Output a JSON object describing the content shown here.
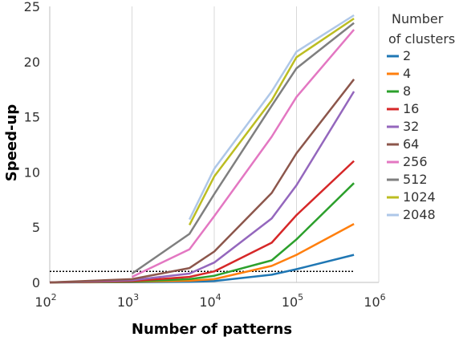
{
  "chart_data": {
    "type": "line",
    "xlabel": "Number of patterns",
    "ylabel": "Speed-up",
    "xscale": "log",
    "xlim": [
      100,
      1000000
    ],
    "ylim": [
      0,
      25
    ],
    "x_ticks": [
      {
        "value": 100,
        "base": "10",
        "exp": "2"
      },
      {
        "value": 1000,
        "base": "10",
        "exp": "3"
      },
      {
        "value": 10000,
        "base": "10",
        "exp": "4"
      },
      {
        "value": 100000,
        "base": "10",
        "exp": "5"
      },
      {
        "value": 1000000,
        "base": "10",
        "exp": "6"
      }
    ],
    "y_ticks": [
      0,
      5,
      10,
      15,
      20,
      25
    ],
    "grid": "vertical",
    "legend": {
      "title_lines": [
        "Number",
        "of clusters"
      ],
      "position": "right"
    },
    "reference_line": {
      "y": 1,
      "style": "dotted"
    },
    "series": [
      {
        "name": "2",
        "color": "#1f77b4",
        "x": [
          100,
          1000,
          5000,
          10000,
          50000,
          100000,
          500000
        ],
        "y": [
          0.0,
          0.02,
          0.05,
          0.12,
          0.7,
          1.2,
          2.5
        ]
      },
      {
        "name": "4",
        "color": "#ff7f0e",
        "x": [
          100,
          1000,
          5000,
          10000,
          50000,
          100000,
          500000
        ],
        "y": [
          0.0,
          0.05,
          0.15,
          0.3,
          1.5,
          2.5,
          5.3
        ]
      },
      {
        "name": "8",
        "color": "#2ca02c",
        "x": [
          100,
          1000,
          5000,
          10000,
          50000,
          100000,
          500000
        ],
        "y": [
          0.0,
          0.08,
          0.3,
          0.6,
          2.0,
          3.9,
          9.0
        ]
      },
      {
        "name": "16",
        "color": "#d62728",
        "x": [
          100,
          1000,
          5000,
          10000,
          50000,
          100000,
          500000
        ],
        "y": [
          0.0,
          0.12,
          0.5,
          1.0,
          3.6,
          6.1,
          11.0
        ]
      },
      {
        "name": "32",
        "color": "#9467bd",
        "x": [
          100,
          1000,
          5000,
          10000,
          50000,
          100000,
          500000
        ],
        "y": [
          0.0,
          0.2,
          0.8,
          1.8,
          5.8,
          8.8,
          17.3
        ]
      },
      {
        "name": "64",
        "color": "#8c564b",
        "x": [
          100,
          1000,
          5000,
          10000,
          50000,
          100000,
          500000
        ],
        "y": [
          0.0,
          0.3,
          1.3,
          2.8,
          8.1,
          11.7,
          18.4
        ]
      },
      {
        "name": "256",
        "color": "#e377c2",
        "x": [
          1000,
          5000,
          10000,
          50000,
          100000,
          500000
        ],
        "y": [
          0.5,
          3.0,
          6.0,
          13.2,
          16.8,
          22.9
        ]
      },
      {
        "name": "512",
        "color": "#7f7f7f",
        "x": [
          1000,
          5000,
          10000,
          50000,
          100000,
          500000
        ],
        "y": [
          0.8,
          4.4,
          8.0,
          16.0,
          19.4,
          23.5
        ]
      },
      {
        "name": "1024",
        "color": "#bcbd22",
        "x": [
          5000,
          10000,
          50000,
          100000,
          500000
        ],
        "y": [
          5.2,
          9.6,
          16.5,
          20.4,
          23.9
        ]
      },
      {
        "name": "2048",
        "color": "#aec7e8",
        "x": [
          5000,
          10000,
          50000,
          100000,
          500000
        ],
        "y": [
          5.7,
          10.3,
          17.3,
          20.9,
          24.2
        ]
      }
    ]
  }
}
